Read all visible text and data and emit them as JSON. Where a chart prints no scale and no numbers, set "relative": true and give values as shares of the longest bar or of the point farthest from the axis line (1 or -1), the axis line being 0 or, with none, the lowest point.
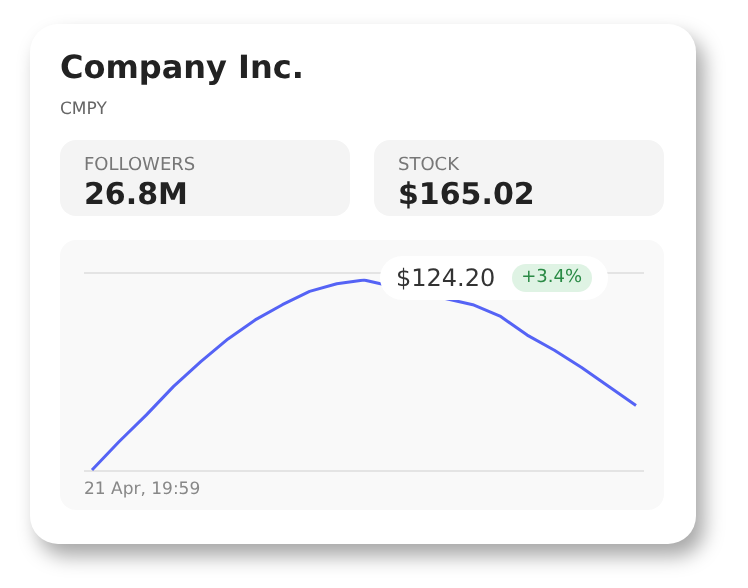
{
  "chart_data": [
    {
      "type": "other",
      "title": "Company Inc.",
      "subtitle": "CMPY",
      "annotations": [
        "FOLLOWERS",
        "26.8M",
        "STOCK",
        "$165.02"
      ]
    },
    {
      "type": "line",
      "relative": true,
      "marker": "none",
      "categories": [
        null,
        null,
        null,
        null,
        null,
        null,
        null,
        null,
        null,
        null,
        null,
        null,
        null,
        null,
        null,
        null,
        null,
        null,
        null,
        null,
        null
      ],
      "series": [
        {
          "color": "#5563f5",
          "values": [
            0,
            0.15,
            0.29,
            0.44,
            0.57,
            0.69,
            0.79,
            0.87,
            0.94,
            0.98,
            1.0,
            null,
            null,
            null,
            0.87,
            0.81,
            0.71,
            0.63,
            0.54,
            0.44,
            0.34
          ]
        }
      ],
      "annotations": [
        "$124.20",
        "+3.4%",
        "21 Apr, 19:59"
      ]
    }
  ]
}
